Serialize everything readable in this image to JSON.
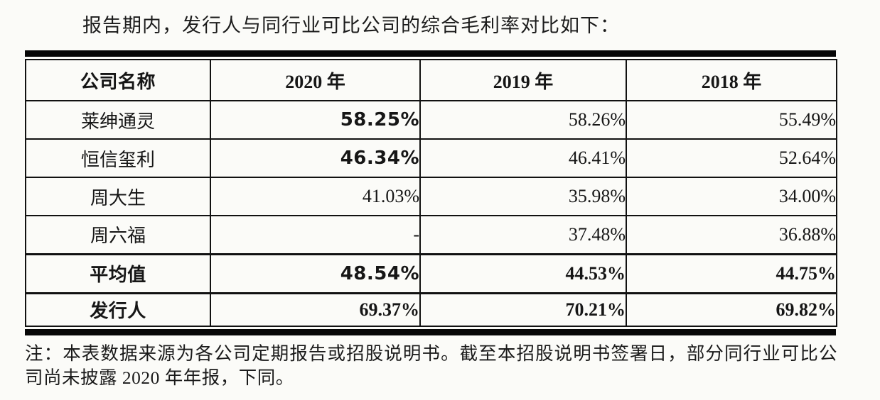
{
  "page": {
    "title": "报告期内，发行人与同行业可比公司的综合毛利率对比如下："
  },
  "table": {
    "headers": {
      "company": "公司名称",
      "y2020": "2020 年",
      "y2019": "2019 年",
      "y2018": "2018 年"
    },
    "rows": [
      {
        "company": "莱绅通灵",
        "y2020": "58.25%",
        "y2019": "58.26%",
        "y2018": "55.49%"
      },
      {
        "company": "恒信玺利",
        "y2020": "46.34%",
        "y2019": "46.41%",
        "y2018": "52.64%"
      },
      {
        "company": "周大生",
        "y2020": "41.03%",
        "y2019": "35.98%",
        "y2018": "34.00%"
      },
      {
        "company": "周六福",
        "y2020": "-",
        "y2019": "37.48%",
        "y2018": "36.88%"
      },
      {
        "company": "平均值",
        "y2020": "48.54%",
        "y2019": "44.53%",
        "y2018": "44.75%"
      },
      {
        "company": "发行人",
        "y2020": "69.37%",
        "y2019": "70.21%",
        "y2018": "69.82%"
      }
    ]
  },
  "note": {
    "text": "注：本表数据来源为各公司定期报告或招股说明书。截至本招股说明书签署日，部分同行业可比公司尚未披露 2020 年年报，下同。"
  }
}
